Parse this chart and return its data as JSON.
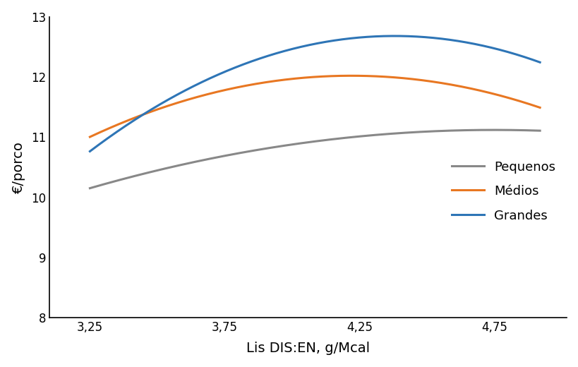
{
  "title": "",
  "xlabel": "Lis DIS:EN, g/Mcal",
  "ylabel": "€/porco",
  "xlim": [
    3.1,
    5.02
  ],
  "ylim": [
    8,
    13
  ],
  "xticks": [
    3.25,
    3.75,
    4.25,
    4.75
  ],
  "xtick_labels": [
    "3,25",
    "3,75",
    "4,25",
    "4,75"
  ],
  "yticks": [
    8,
    9,
    10,
    11,
    12,
    13
  ],
  "series": [
    {
      "label": "Pequenos",
      "color": "#888888",
      "a": -0.43,
      "x_peak": 4.75,
      "y_peak": 11.12,
      "x_start": 3.25,
      "x_end": 4.92
    },
    {
      "label": "Médios",
      "color": "#E87722",
      "a": -1.08,
      "x_peak": 4.22,
      "y_peak": 12.02,
      "x_start": 3.25,
      "x_end": 4.92
    },
    {
      "label": "Grandes",
      "color": "#2E75B6",
      "a": -1.5,
      "x_peak": 4.38,
      "y_peak": 12.68,
      "x_start": 3.25,
      "x_end": 4.92
    }
  ],
  "legend_fontsize": 13,
  "axis_fontsize": 14,
  "tick_fontsize": 12,
  "line_width": 2.2,
  "background_color": "#ffffff",
  "spine_color": "#000000"
}
